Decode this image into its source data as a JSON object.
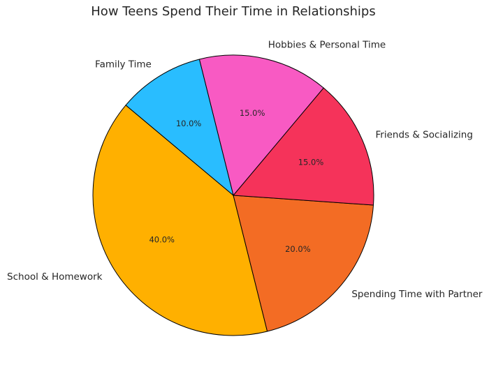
{
  "chart_data": {
    "type": "pie",
    "title": "How Teens Spend Their Time in Relationships",
    "categories": [
      "School & Homework",
      "Spending Time with Partner",
      "Friends & Socializing",
      "Hobbies & Personal Time",
      "Family Time"
    ],
    "values": [
      40,
      20,
      15,
      15,
      10
    ],
    "value_labels": [
      "40.0%",
      "20.0%",
      "15.0%",
      "15.0%",
      "10.0%"
    ],
    "colors": [
      "#ffb000",
      "#f36c24",
      "#f5335a",
      "#f85ac3",
      "#29bdff"
    ],
    "startangle": 140
  }
}
